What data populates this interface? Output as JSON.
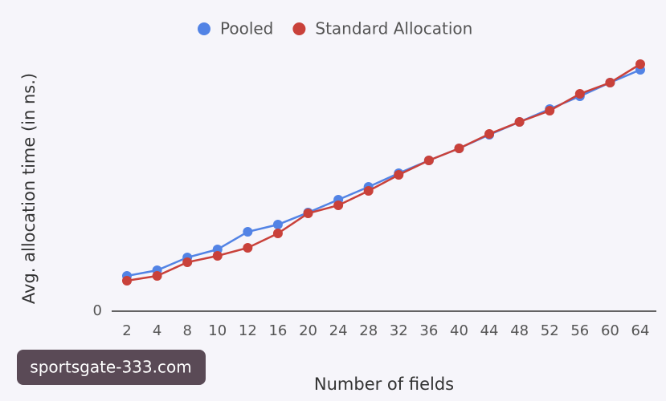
{
  "chart_data": {
    "type": "line",
    "x_label": "Number of fields",
    "y_label": "Avg. allocation time (in ns.)",
    "categories": [
      "2",
      "4",
      "8",
      "10",
      "12",
      "16",
      "20",
      "24",
      "28",
      "32",
      "36",
      "40",
      "44",
      "48",
      "52",
      "56",
      "60",
      "64"
    ],
    "series": [
      {
        "name": "Pooled",
        "color": "#5283e5",
        "values": [
          44,
          51,
          67,
          77,
          99,
          108,
          123,
          139,
          155,
          172,
          188,
          203,
          220,
          236,
          252,
          268,
          285,
          301
        ]
      },
      {
        "name": "Standard Allocation",
        "color": "#c9413a",
        "values": [
          38,
          44,
          61,
          69,
          79,
          97,
          122,
          132,
          150,
          170,
          188,
          203,
          221,
          236,
          250,
          271,
          285,
          308
        ]
      }
    ],
    "ylim": [
      0,
      308
    ],
    "yticks": [
      0
    ],
    "legend": "top"
  },
  "watermark": "sportsgate-333.com"
}
